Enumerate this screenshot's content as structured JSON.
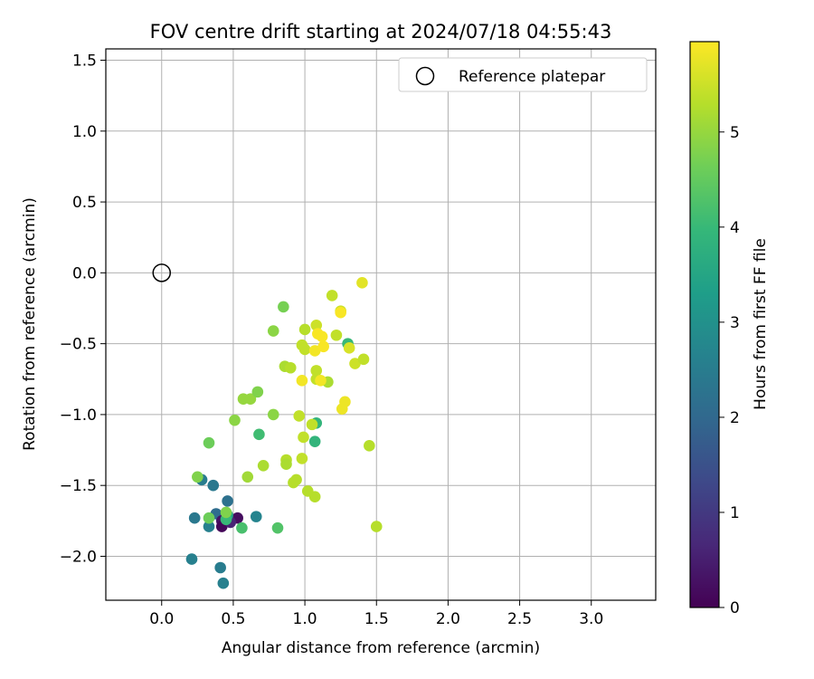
{
  "chart_data": {
    "type": "scatter",
    "title": "FOV centre drift starting at 2024/07/18 04:55:43",
    "xlabel": "Angular distance from reference (arcmin)",
    "ylabel": "Rotation from reference (arcmin)",
    "xlim": [
      -0.39,
      3.45
    ],
    "ylim": [
      -2.31,
      1.58
    ],
    "xticks": [
      0.0,
      0.5,
      1.0,
      1.5,
      2.0,
      2.5,
      3.0
    ],
    "xtick_labels": [
      "0.0",
      "0.5",
      "1.0",
      "1.5",
      "2.0",
      "2.5",
      "3.0"
    ],
    "yticks": [
      1.5,
      1.0,
      0.5,
      0.0,
      -0.5,
      -1.0,
      -1.5,
      -2.0
    ],
    "ytick_labels": [
      "1.5",
      "1.0",
      "0.5",
      "0.0",
      "−0.5",
      "−1.0",
      "−1.5",
      "−2.0"
    ],
    "grid": true,
    "legend": {
      "position": "top-right",
      "label": "Reference platepar"
    },
    "reference_point": {
      "x": 0.0,
      "y": 0.0
    },
    "colorbar": {
      "label": "Hours from first FF file",
      "range": [
        0,
        5.95
      ],
      "ticks": [
        0,
        1,
        2,
        3,
        4,
        5
      ],
      "tick_labels": [
        "0",
        "1",
        "2",
        "3",
        "4",
        "5"
      ],
      "colormap": [
        "#440154",
        "#482878",
        "#3e4989",
        "#31688e",
        "#26828e",
        "#1f9e89",
        "#35b779",
        "#6ece58",
        "#b5de2b",
        "#fde725"
      ]
    },
    "points": [
      {
        "x": 0.46,
        "y": -1.61,
        "h": 2.2
      },
      {
        "x": 0.44,
        "y": -1.72,
        "h": 2.3
      },
      {
        "x": 0.38,
        "y": -1.7,
        "h": 2.1
      },
      {
        "x": 0.42,
        "y": -1.75,
        "h": 0.3
      },
      {
        "x": 0.42,
        "y": -1.79,
        "h": 0.1
      },
      {
        "x": 0.53,
        "y": -1.73,
        "h": 0.2
      },
      {
        "x": 0.48,
        "y": -1.76,
        "h": 0.6
      },
      {
        "x": 0.23,
        "y": -1.73,
        "h": 2.4
      },
      {
        "x": 0.33,
        "y": -1.79,
        "h": 2.6
      },
      {
        "x": 0.36,
        "y": -1.5,
        "h": 2.4
      },
      {
        "x": 0.28,
        "y": -1.46,
        "h": 2.5
      },
      {
        "x": 0.21,
        "y": -2.02,
        "h": 2.6
      },
      {
        "x": 0.41,
        "y": -2.08,
        "h": 2.5
      },
      {
        "x": 0.43,
        "y": -2.19,
        "h": 2.6
      },
      {
        "x": 0.66,
        "y": -1.72,
        "h": 2.7
      },
      {
        "x": 0.46,
        "y": -1.71,
        "h": 3.5
      },
      {
        "x": 0.45,
        "y": -1.74,
        "h": 4.0
      },
      {
        "x": 0.56,
        "y": -1.8,
        "h": 4.2
      },
      {
        "x": 0.81,
        "y": -1.8,
        "h": 4.3
      },
      {
        "x": 0.68,
        "y": -1.14,
        "h": 4.1
      },
      {
        "x": 1.08,
        "y": -1.06,
        "h": 3.9
      },
      {
        "x": 1.07,
        "y": -1.19,
        "h": 3.9
      },
      {
        "x": 1.3,
        "y": -0.5,
        "h": 4.0
      },
      {
        "x": 0.33,
        "y": -1.73,
        "h": 4.6
      },
      {
        "x": 0.45,
        "y": -1.69,
        "h": 4.8
      },
      {
        "x": 0.25,
        "y": -1.44,
        "h": 4.8
      },
      {
        "x": 0.33,
        "y": -1.2,
        "h": 4.6
      },
      {
        "x": 0.51,
        "y": -1.04,
        "h": 4.9
      },
      {
        "x": 0.57,
        "y": -0.89,
        "h": 5.0
      },
      {
        "x": 0.62,
        "y": -0.89,
        "h": 5.0
      },
      {
        "x": 0.67,
        "y": -0.84,
        "h": 4.8
      },
      {
        "x": 0.78,
        "y": -1.0,
        "h": 4.9
      },
      {
        "x": 0.78,
        "y": -0.41,
        "h": 4.9
      },
      {
        "x": 0.85,
        "y": -0.24,
        "h": 4.7
      },
      {
        "x": 0.6,
        "y": -1.44,
        "h": 5.1
      },
      {
        "x": 0.71,
        "y": -1.36,
        "h": 5.2
      },
      {
        "x": 0.87,
        "y": -1.32,
        "h": 5.3
      },
      {
        "x": 0.87,
        "y": -1.35,
        "h": 5.2
      },
      {
        "x": 0.92,
        "y": -1.48,
        "h": 5.3
      },
      {
        "x": 0.94,
        "y": -1.46,
        "h": 5.3
      },
      {
        "x": 0.98,
        "y": -1.31,
        "h": 5.4
      },
      {
        "x": 1.02,
        "y": -1.54,
        "h": 5.3
      },
      {
        "x": 1.07,
        "y": -1.58,
        "h": 5.3
      },
      {
        "x": 0.96,
        "y": -1.01,
        "h": 5.4
      },
      {
        "x": 0.99,
        "y": -1.16,
        "h": 5.4
      },
      {
        "x": 1.05,
        "y": -1.07,
        "h": 5.4
      },
      {
        "x": 0.86,
        "y": -0.66,
        "h": 5.2
      },
      {
        "x": 0.9,
        "y": -0.67,
        "h": 5.3
      },
      {
        "x": 0.98,
        "y": -0.51,
        "h": 5.4
      },
      {
        "x": 1.0,
        "y": -0.54,
        "h": 5.4
      },
      {
        "x": 1.0,
        "y": -0.4,
        "h": 5.3
      },
      {
        "x": 1.08,
        "y": -0.37,
        "h": 5.5
      },
      {
        "x": 1.08,
        "y": -0.69,
        "h": 5.4
      },
      {
        "x": 1.08,
        "y": -0.75,
        "h": 5.4
      },
      {
        "x": 1.16,
        "y": -0.77,
        "h": 5.2
      },
      {
        "x": 1.19,
        "y": -0.16,
        "h": 5.4
      },
      {
        "x": 1.22,
        "y": -0.44,
        "h": 5.4
      },
      {
        "x": 1.25,
        "y": -0.27,
        "h": 5.5
      },
      {
        "x": 1.31,
        "y": -0.53,
        "h": 5.6
      },
      {
        "x": 1.35,
        "y": -0.64,
        "h": 5.5
      },
      {
        "x": 1.41,
        "y": -0.61,
        "h": 5.4
      },
      {
        "x": 1.4,
        "y": -0.07,
        "h": 5.7
      },
      {
        "x": 1.45,
        "y": -1.22,
        "h": 5.3
      },
      {
        "x": 1.5,
        "y": -1.79,
        "h": 5.3
      },
      {
        "x": 1.26,
        "y": -0.96,
        "h": 5.8
      },
      {
        "x": 1.28,
        "y": -0.91,
        "h": 5.8
      },
      {
        "x": 0.98,
        "y": -0.76,
        "h": 5.85
      },
      {
        "x": 1.07,
        "y": -0.55,
        "h": 5.85
      },
      {
        "x": 1.09,
        "y": -0.43,
        "h": 5.9
      },
      {
        "x": 1.12,
        "y": -0.45,
        "h": 5.9
      },
      {
        "x": 1.13,
        "y": -0.52,
        "h": 5.9
      },
      {
        "x": 1.11,
        "y": -0.76,
        "h": 5.85
      },
      {
        "x": 1.25,
        "y": -0.28,
        "h": 5.9
      }
    ]
  }
}
